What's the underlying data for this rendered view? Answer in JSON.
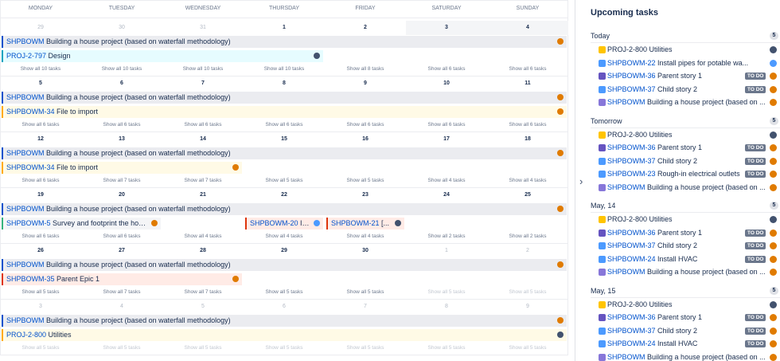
{
  "calendar": {
    "weekdays": [
      "MONDAY",
      "TUESDAY",
      "WEDNESDAY",
      "THURSDAY",
      "FRIDAY",
      "SATURDAY",
      "SUNDAY"
    ],
    "weeks": [
      {
        "dates": [
          29,
          30,
          31,
          1,
          2,
          3,
          4
        ],
        "bars": [
          {
            "key": "SHPBOWM",
            "title": "Building a house project (based on waterfall methodology)"
          },
          {
            "key": "PROJ-2-797",
            "title": "Design"
          }
        ],
        "show_all": [
          "Show all 10 tasks",
          "Show all 10 tasks",
          "Show all 10 tasks",
          "Show all 10 tasks",
          "Show all 8 tasks",
          "Show all 6 tasks",
          "Show all 6 tasks"
        ]
      },
      {
        "dates": [
          5,
          6,
          7,
          8,
          9,
          10,
          11
        ],
        "bars": [
          {
            "key": "SHPBOWM",
            "title": "Building a house project (based on waterfall methodology)"
          },
          {
            "key": "SHPBOWM-34",
            "title": "File to import"
          }
        ],
        "show_all": [
          "Show all 6 tasks",
          "Show all 6 tasks",
          "Show all 6 tasks",
          "Show all 6 tasks",
          "Show all 6 tasks",
          "Show all 6 tasks",
          "Show all 6 tasks"
        ]
      },
      {
        "dates": [
          12,
          13,
          14,
          15,
          16,
          17,
          18
        ],
        "bars": [
          {
            "key": "SHPBOWM",
            "title": "Building a house project (based on waterfall methodology)"
          },
          {
            "key": "SHPBOWM-34",
            "title": "File to import"
          }
        ],
        "show_all": [
          "Show all 6 tasks",
          "Show all 7 tasks",
          "Show all 7 tasks",
          "Show all 5 tasks",
          "Show all 5 tasks",
          "Show all 4 tasks",
          "Show all 4 tasks"
        ]
      },
      {
        "dates": [
          19,
          20,
          21,
          22,
          23,
          24,
          25
        ],
        "bars": [
          {
            "key": "SHPBOWM",
            "title": "Building a house project (based on waterfall methodology)"
          },
          {
            "key": "SHPBOWM-5",
            "title": "Survey and footprint the house"
          },
          {
            "key": "SHPBOWM-20",
            "title": "In..."
          },
          {
            "key": "SHPBOWM-21",
            "title": "[..."
          }
        ],
        "show_all": [
          "Show all 6 tasks",
          "Show all 6 tasks",
          "Show all 4 tasks",
          "Show all 4 tasks",
          "Show all 4 tasks",
          "Show all 2 tasks",
          "Show all 2 tasks"
        ]
      },
      {
        "dates": [
          26,
          27,
          28,
          29,
          30,
          1,
          2
        ],
        "bars": [
          {
            "key": "SHPBOWM",
            "title": "Building a house project (based on waterfall methodology)"
          },
          {
            "key": "SHPBOWM-35",
            "title": "Parent Epic 1"
          }
        ],
        "show_all": [
          "Show all 5 tasks",
          "Show all 7 tasks",
          "Show all 7 tasks",
          "Show all 5 tasks",
          "Show all 5 tasks",
          "Show all 5 tasks",
          "Show all 5 tasks"
        ]
      },
      {
        "dates": [
          3,
          4,
          5,
          6,
          7,
          8,
          9
        ],
        "bars": [
          {
            "key": "SHPBOWM",
            "title": "Building a house project (based on waterfall methodology)"
          },
          {
            "key": "PROJ-2-800",
            "title": "Utilities"
          }
        ],
        "show_all": [
          "Show all 5 tasks",
          "Show all 5 tasks",
          "Show all 5 tasks",
          "Show all 5 tasks",
          "Show all 5 tasks",
          "Show all 5 tasks",
          "Show all 5 tasks"
        ]
      }
    ]
  },
  "upcoming": {
    "title": "Upcoming tasks",
    "groups": [
      {
        "label": "Today",
        "count": 5,
        "items": [
          {
            "key": "PROJ-2-800",
            "title": "Utilities",
            "icon": "utility"
          },
          {
            "key": "SHPBOWM-22",
            "title": "Install pipes for potable wa...",
            "icon": "task"
          },
          {
            "key": "SHPBOWM-36",
            "title": "Parent story 1",
            "status": "TO DO",
            "icon": "epic"
          },
          {
            "key": "SHPBOWM-37",
            "title": "Child story 2",
            "status": "TO DO",
            "icon": "task"
          },
          {
            "key": "SHPBOWM",
            "title": "Building a house project (based on ...",
            "icon": "project"
          }
        ]
      },
      {
        "label": "Tomorrow",
        "count": 5,
        "items": [
          {
            "key": "PROJ-2-800",
            "title": "Utilities",
            "icon": "utility"
          },
          {
            "key": "SHPBOWM-36",
            "title": "Parent story 1",
            "status": "TO DO",
            "icon": "epic"
          },
          {
            "key": "SHPBOWM-37",
            "title": "Child story 2",
            "status": "TO DO",
            "icon": "task"
          },
          {
            "key": "SHPBOWM-23",
            "title": "Rough-in electrical outlets",
            "status": "TO DO",
            "icon": "task"
          },
          {
            "key": "SHPBOWM",
            "title": "Building a house project (based on ...",
            "icon": "project"
          }
        ]
      },
      {
        "label": "May, 14",
        "count": 5,
        "items": [
          {
            "key": "PROJ-2-800",
            "title": "Utilities",
            "icon": "utility"
          },
          {
            "key": "SHPBOWM-36",
            "title": "Parent story 1",
            "status": "TO DO",
            "icon": "epic"
          },
          {
            "key": "SHPBOWM-37",
            "title": "Child story 2",
            "status": "TO DO",
            "icon": "task"
          },
          {
            "key": "SHPBOWM-24",
            "title": "Install HVAC",
            "status": "TO DO",
            "icon": "task"
          },
          {
            "key": "SHPBOWM",
            "title": "Building a house project (based on ...",
            "icon": "project"
          }
        ]
      },
      {
        "label": "May, 15",
        "count": 5,
        "items": [
          {
            "key": "PROJ-2-800",
            "title": "Utilities",
            "icon": "utility"
          },
          {
            "key": "SHPBOWM-36",
            "title": "Parent story 1",
            "status": "TO DO",
            "icon": "epic"
          },
          {
            "key": "SHPBOWM-37",
            "title": "Child story 2",
            "status": "TO DO",
            "icon": "task"
          },
          {
            "key": "SHPBOWM-24",
            "title": "Install HVAC",
            "status": "TO DO",
            "icon": "task"
          },
          {
            "key": "SHPBOWM",
            "title": "Building a house project (based on ...",
            "icon": "project"
          }
        ]
      }
    ]
  }
}
